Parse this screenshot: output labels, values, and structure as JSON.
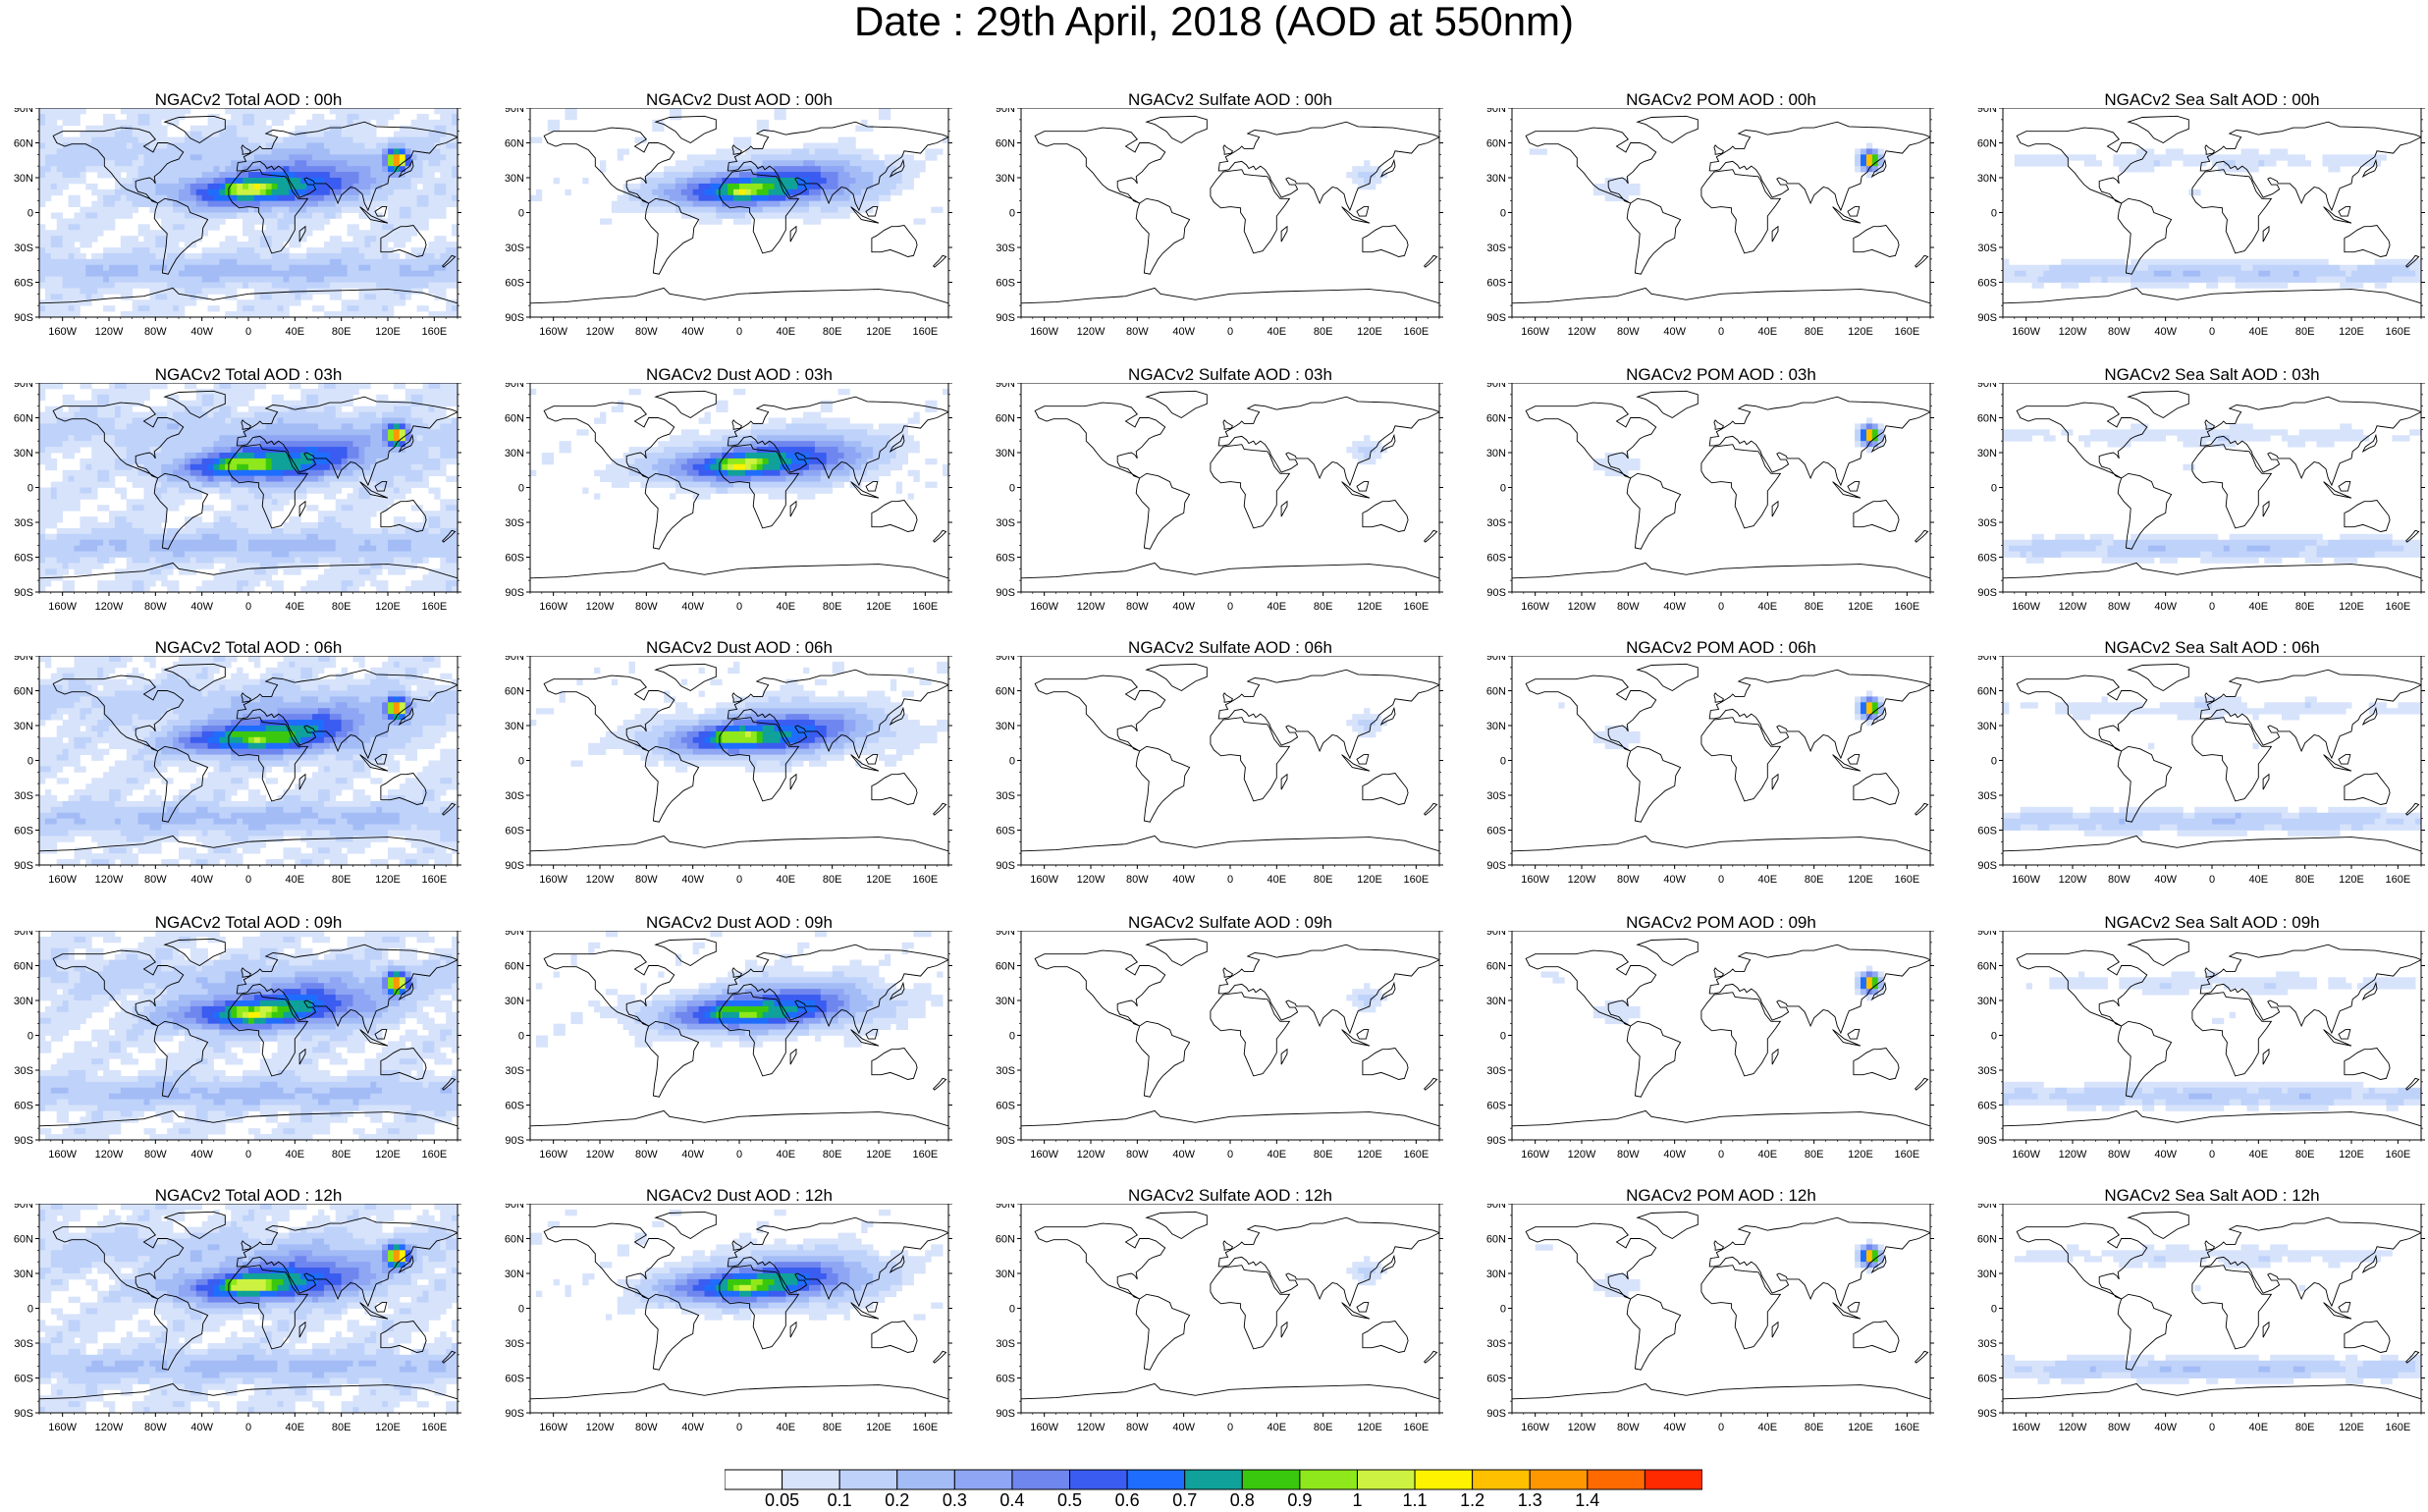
{
  "title": "Date : 29th April, 2018 (AOD at 550nm)",
  "rows": [
    [
      "NGACv2 Total AOD : 00h",
      "NGACv2 Dust AOD : 00h",
      "NGACv2 Sulfate AOD : 00h",
      "NGACv2 POM AOD : 00h",
      "NGACv2 Sea Salt AOD : 00h"
    ],
    [
      "NGACv2 Total AOD : 03h",
      "NGACv2 Dust AOD : 03h",
      "NGACv2 Sulfate AOD : 03h",
      "NGACv2 POM AOD : 03h",
      "NGACv2 Sea Salt AOD : 03h"
    ],
    [
      "NGACv2 Total AOD : 06h",
      "NGACv2 Dust AOD : 06h",
      "NGACv2 Sulfate AOD : 06h",
      "NGACv2 POM AOD : 06h",
      "NGACv2 Sea Salt AOD : 06h"
    ],
    [
      "NGACv2 Total AOD : 09h",
      "NGACv2 Dust AOD : 09h",
      "NGACv2 Sulfate AOD : 09h",
      "NGACv2 POM AOD : 09h",
      "NGACv2 Sea Salt  AOD : 09h"
    ],
    [
      "NGACv2 Total AOD :  12h",
      "NGACv2 Dust AOD : 12h",
      "NGACv2 Sulfate AOD : 12h",
      "NGACv2 POM  AOD : 12h",
      "NGACv2 Sea Salt  AOD : 12h"
    ]
  ],
  "lat_labels": [
    "90N",
    "60N",
    "30N",
    "0",
    "30S",
    "60S",
    "90S"
  ],
  "lon_labels": [
    "160W",
    "120W",
    "80W",
    "40W",
    "0",
    "40E",
    "80E",
    "120E",
    "160E"
  ],
  "colorbar": {
    "labels": [
      "0.05",
      "0.1",
      "0.2",
      "0.3",
      "0.4",
      "0.5",
      "0.6",
      "0.7",
      "0.8",
      "0.9",
      "1",
      "1.1",
      "1.2",
      "1.3",
      "1.4"
    ],
    "colors": [
      "#ffffff",
      "#d7e3fb",
      "#bfd2fa",
      "#a3bcf6",
      "#8ea6f3",
      "#6f86ef",
      "#3a5cf0",
      "#1e6dff",
      "#0fa19a",
      "#3ac80e",
      "#8ee81b",
      "#cdf241",
      "#fff200",
      "#ffc000",
      "#ff9800",
      "#ff6a00",
      "#ff2a00"
    ]
  },
  "species_fields": {
    "Total": "widespread low AOD, dust belt North Africa-Asia, high AOD plume East Asia",
    "Dust": "Saharan and Asian dust belt",
    "Sulfate": "weak, East Asia",
    "POM": "high plume East Asia",
    "Sea Salt": "Southern Ocean and storm tracks"
  }
}
